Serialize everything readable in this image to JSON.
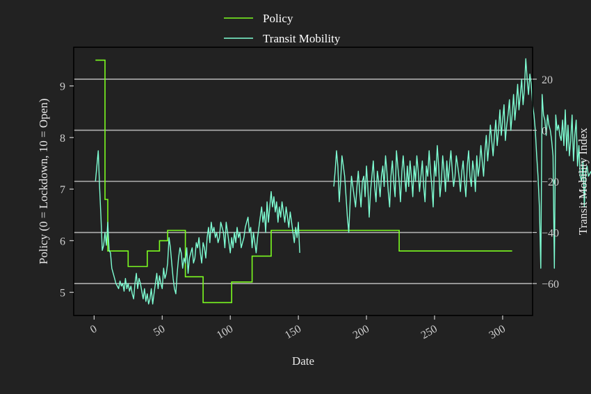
{
  "chart_data": {
    "type": "line",
    "xlabel": "Date",
    "ylabel_left": "Policy (0 = Lockdown, 10 = Open)",
    "ylabel_right": "Transit Mobility Index",
    "xlim": [
      -15,
      322
    ],
    "ylim_left": [
      4.55,
      9.75
    ],
    "ylim_right": [
      -72.5,
      32.5
    ],
    "x_ticks": [
      {
        "value": 0,
        "label": "0"
      },
      {
        "value": 50,
        "label": "50"
      },
      {
        "value": 100,
        "label": "100"
      },
      {
        "value": 150,
        "label": "150"
      },
      {
        "value": 200,
        "label": "200"
      },
      {
        "value": 250,
        "label": "250"
      },
      {
        "value": 300,
        "label": "300"
      }
    ],
    "y_left_ticks": [
      {
        "value": 5,
        "label": "5"
      },
      {
        "value": 6,
        "label": "6"
      },
      {
        "value": 7,
        "label": "7"
      },
      {
        "value": 8,
        "label": "8"
      },
      {
        "value": 9,
        "label": "9"
      }
    ],
    "y_right_ticks": [
      {
        "value": 20,
        "label": "20"
      },
      {
        "value": 0,
        "label": "0"
      },
      {
        "value": -20,
        "label": "−20"
      },
      {
        "value": -40,
        "label": "−40"
      },
      {
        "value": -60,
        "label": "−60"
      }
    ],
    "grid": "horizontal lines at right-axis ticks",
    "legend": {
      "placement": "top-center, outside plot"
    },
    "colors": {
      "background": "#222222",
      "axes_frame": "#000000",
      "grid": "#b0b0b0",
      "policy": "#7CFC20",
      "transit": "#7FFFD4"
    },
    "series": [
      {
        "name": "Policy",
        "axis": "left",
        "color": "#7CFC20",
        "x": [
          1,
          8,
          8,
          10,
          10,
          25,
          25,
          39,
          39,
          48,
          48,
          54,
          54,
          67,
          67,
          80,
          80,
          101,
          101,
          116,
          116,
          130,
          130,
          224,
          224,
          307
        ],
        "y": [
          9.5,
          9.5,
          6.8,
          6.8,
          5.8,
          5.8,
          5.5,
          5.5,
          5.8,
          5.8,
          6.0,
          6.0,
          6.2,
          6.2,
          5.3,
          5.3,
          4.8,
          4.8,
          5.2,
          5.2,
          5.7,
          5.7,
          6.2,
          6.2,
          5.8,
          5.8
        ]
      },
      {
        "name": "Transit Mobility",
        "axis": "right",
        "color": "#7FFFD4",
        "segments": [
          {
            "x_start": 1,
            "values": [
              -20,
              -14,
              -8,
              -22,
              -34,
              -47,
              -45,
              -40,
              -45,
              -36,
              -47,
              -48,
              -54,
              -56,
              -58,
              -60,
              -61,
              -62,
              -59,
              -61,
              -60,
              -63,
              -58,
              -62,
              -60,
              -63,
              -61,
              -64,
              -66,
              -60,
              -56,
              -62,
              -58,
              -60,
              -63,
              -66,
              -62,
              -67,
              -64,
              -68,
              -66,
              -62,
              -68,
              -64,
              -60,
              -56,
              -62,
              -57,
              -60,
              -62,
              -54,
              -58,
              -56,
              -52,
              -42,
              -46,
              -52,
              -58,
              -62,
              -64,
              -56,
              -50,
              -46,
              -48,
              -54,
              -50,
              -52,
              -46,
              -56,
              -50,
              -48,
              -46,
              -52,
              -50,
              -44,
              -46,
              -42,
              -48,
              -52,
              -44,
              -46,
              -50,
              -42,
              -38,
              -44,
              -36,
              -40,
              -38,
              -42,
              -40,
              -44,
              -42,
              -36,
              -38,
              -40,
              -46,
              -36,
              -40,
              -44,
              -48,
              -42,
              -46,
              -40,
              -44,
              -38,
              -42,
              -40,
              -46,
              -44,
              -42,
              -38,
              -36,
              -34,
              -40,
              -38,
              -46,
              -40,
              -44,
              -48,
              -42,
              -38,
              -34,
              -30,
              -36,
              -32,
              -40,
              -28,
              -36,
              -30,
              -24,
              -30,
              -26,
              -32,
              -28,
              -36,
              -30,
              -34,
              -28,
              -32,
              -36,
              -30,
              -34,
              -38,
              -32,
              -36,
              -40,
              -44,
              -38,
              -42,
              -36,
              -48
            ]
          },
          {
            "x_start": 176,
            "values": [
              -22,
              -16,
              -8,
              -14,
              -28,
              -20,
              -10,
              -14,
              -18,
              -26,
              -34,
              -40,
              -28,
              -18,
              -22,
              -26,
              -30,
              -22,
              -16,
              -24,
              -30,
              -20,
              -18,
              -26,
              -14,
              -22,
              -34,
              -24,
              -18,
              -12,
              -22,
              -28,
              -16,
              -20,
              -26,
              -18,
              -14,
              -22,
              -10,
              -16,
              -24,
              -30,
              -18,
              -12,
              -20,
              -26,
              -8,
              -14,
              -20,
              -28,
              -16,
              -10,
              -18,
              -24,
              -14,
              -22,
              -12,
              -18,
              -26,
              -14,
              -20,
              -10,
              -16,
              -24,
              -18,
              -12,
              -22,
              -28,
              -14,
              -18,
              -8,
              -16,
              -22,
              -30,
              -12,
              -18,
              -6,
              -14,
              -26,
              -20,
              -10,
              -16,
              -24,
              -12,
              -20,
              -14,
              -8,
              -16,
              -22,
              -18,
              -10,
              -14,
              -18,
              -24,
              -16,
              -12,
              -20,
              -26,
              -14,
              -8,
              -18,
              -22,
              -12,
              -16,
              -24,
              -10,
              -18,
              -14,
              -6,
              -12,
              -18,
              -8,
              -2,
              -12,
              -6,
              2,
              -4,
              -10,
              -2,
              4,
              -6,
              0,
              8,
              -2,
              4,
              10,
              -4,
              2,
              6,
              12,
              0,
              6,
              14,
              4,
              10,
              18,
              8,
              14,
              20,
              10,
              16,
              28,
              20,
              14,
              22,
              18,
              10,
              6,
              0,
              -10,
              -18,
              -30,
              -54,
              14,
              6,
              4,
              -2,
              6,
              2,
              0,
              -4,
              -10,
              -54,
              6,
              0,
              2,
              -2,
              -4,
              4,
              -6,
              8,
              -8,
              2,
              -10,
              -4,
              6,
              -12,
              -2,
              4,
              -14,
              -6,
              -18,
              -20,
              -12,
              -30,
              -16,
              -14,
              -18,
              -17,
              -16
            ]
          }
        ]
      }
    ]
  }
}
